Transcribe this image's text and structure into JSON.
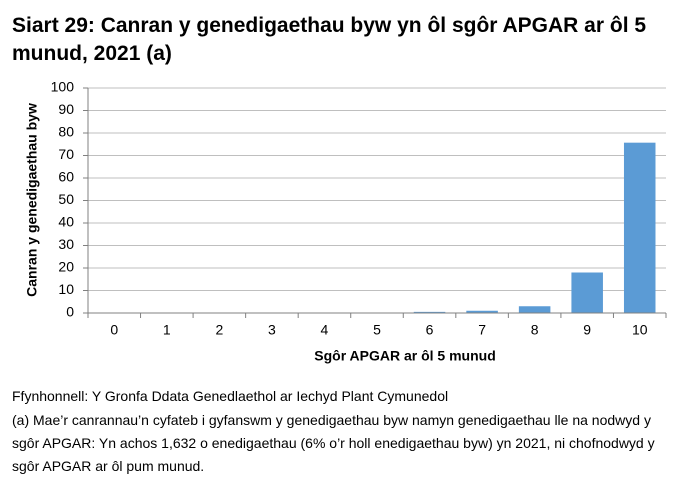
{
  "chart_data": {
    "type": "bar",
    "title": "Siart 29: Canran y genedigaethau byw yn ôl sgôr APGAR ar ôl 5 munud, 2021 (a)",
    "x_label": "Sgôr APGAR ar ôl 5 munud",
    "y_label": "Canran y genedigaethau byw",
    "categories": [
      "0",
      "1",
      "2",
      "3",
      "4",
      "5",
      "6",
      "7",
      "8",
      "9",
      "10"
    ],
    "values": [
      0,
      0,
      0,
      0,
      0,
      0.1,
      0.5,
      1,
      3,
      18,
      75.7
    ],
    "color": "#5b9bd5",
    "ylim": [
      0,
      100
    ],
    "yticks": [
      0,
      10,
      20,
      30,
      40,
      50,
      60,
      70,
      80,
      90,
      100
    ],
    "grid": true,
    "source": "Ffynhonnell: Y Gronfa Ddata Genedlaethol ar Iechyd Plant Cymunedol",
    "note": "(a) Mae’r canrannau’n cyfateb i gyfanswm y genedigaethau byw namyn genedigaethau lle na nodwyd y sgôr APGAR: Yn achos 1,632 o enedigaethau (6% o’r holl enedigaethau byw) yn 2021, ni chofnodwyd y sgôr APGAR ar ôl pum munud."
  }
}
